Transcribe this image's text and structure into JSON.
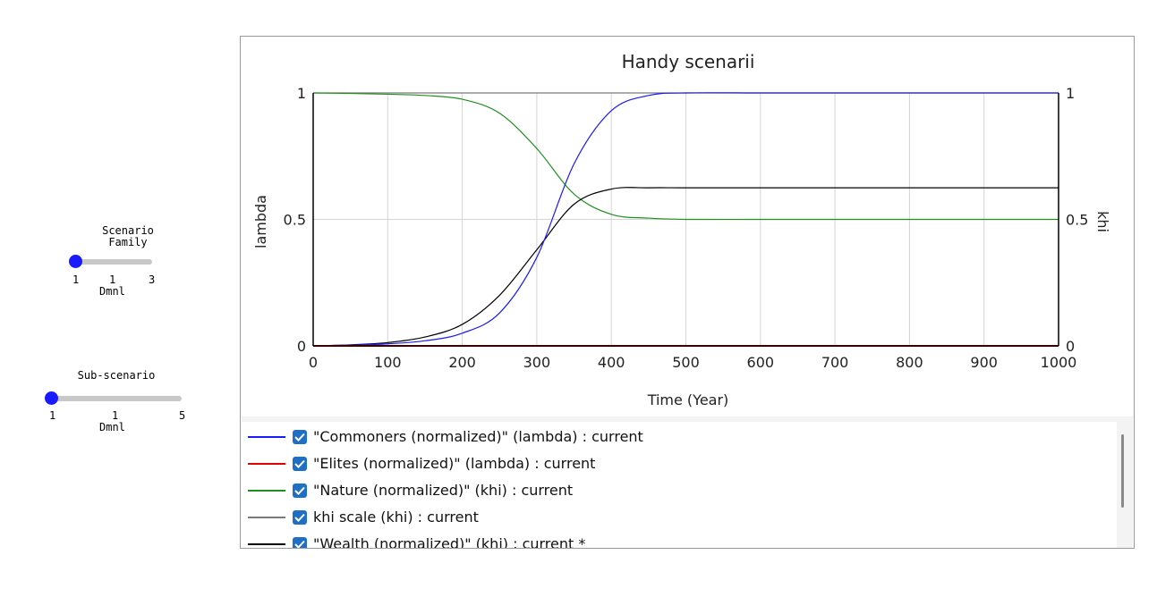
{
  "controls": {
    "scenario_family": {
      "title": "Scenario\nFamily",
      "min": "1",
      "value": "1",
      "max": "3",
      "unit": "Dmnl"
    },
    "sub_scenario": {
      "title": "Sub-scenario",
      "min": "1",
      "value": "1",
      "max": "5",
      "unit": "Dmnl"
    }
  },
  "legend": {
    "items": [
      {
        "label": "\"Commoners (normalized)\" (lambda) : current",
        "color": "#1a1aff"
      },
      {
        "label": "\"Elites (normalized)\" (lambda) : current",
        "color": "#e00000"
      },
      {
        "label": "\"Nature (normalized)\" (khi) : current",
        "color": "#1f8f1f"
      },
      {
        "label": "khi scale (khi) : current",
        "color": "#7a7a7a"
      },
      {
        "label": "\"Wealth (normalized)\" (khi) : current *",
        "color": "#000000"
      }
    ]
  },
  "chart_data": {
    "type": "line",
    "title": "Handy scenarii",
    "xlabel": "Time (Year)",
    "ylabel": "lambda",
    "y2label": "khi",
    "xlim": [
      0,
      1000
    ],
    "ylim": [
      0,
      1
    ],
    "y2lim": [
      0,
      1
    ],
    "x_ticks": [
      "0",
      "100",
      "200",
      "300",
      "400",
      "500",
      "600",
      "700",
      "800",
      "900",
      "1000"
    ],
    "y_ticks": [
      "0",
      "0.5",
      "1"
    ],
    "y2_ticks": [
      "0",
      "0.5",
      "1"
    ],
    "grid": true,
    "x": [
      0,
      50,
      100,
      150,
      200,
      250,
      300,
      350,
      400,
      450,
      500,
      600,
      700,
      800,
      900,
      1000
    ],
    "series": [
      {
        "name": "\"Commoners (normalized)\" (lambda) : current",
        "axis": "left",
        "color": "#1a1aff",
        "values": [
          0.0,
          0.003,
          0.008,
          0.02,
          0.05,
          0.13,
          0.35,
          0.72,
          0.93,
          0.99,
          1.0,
          1.0,
          1.0,
          1.0,
          1.0,
          1.0
        ]
      },
      {
        "name": "\"Elites (normalized)\" (lambda) : current",
        "axis": "left",
        "color": "#e00000",
        "values": [
          0.0,
          0.0,
          0.0,
          0.0,
          0.0,
          0.0,
          0.0,
          0.0,
          0.0,
          0.0,
          0.0,
          0.0,
          0.0,
          0.0,
          0.0,
          0.0
        ]
      },
      {
        "name": "\"Nature (normalized)\" (khi) : current",
        "axis": "right",
        "color": "#1f8f1f",
        "values": [
          1.0,
          0.998,
          0.995,
          0.99,
          0.975,
          0.92,
          0.78,
          0.6,
          0.52,
          0.505,
          0.5,
          0.5,
          0.5,
          0.5,
          0.5,
          0.5
        ]
      },
      {
        "name": "khi scale (khi) : current",
        "axis": "right",
        "color": "#7a7a7a",
        "values": [
          1.0,
          1.0,
          1.0,
          1.0,
          1.0,
          1.0,
          1.0,
          1.0,
          1.0,
          1.0,
          1.0,
          1.0,
          1.0,
          1.0,
          1.0,
          1.0
        ]
      },
      {
        "name": "\"Wealth (normalized)\" (khi) : current *",
        "axis": "right",
        "color": "#000000",
        "values": [
          0.0,
          0.004,
          0.013,
          0.035,
          0.085,
          0.2,
          0.38,
          0.56,
          0.62,
          0.625,
          0.625,
          0.625,
          0.625,
          0.625,
          0.625,
          0.625
        ]
      }
    ]
  }
}
